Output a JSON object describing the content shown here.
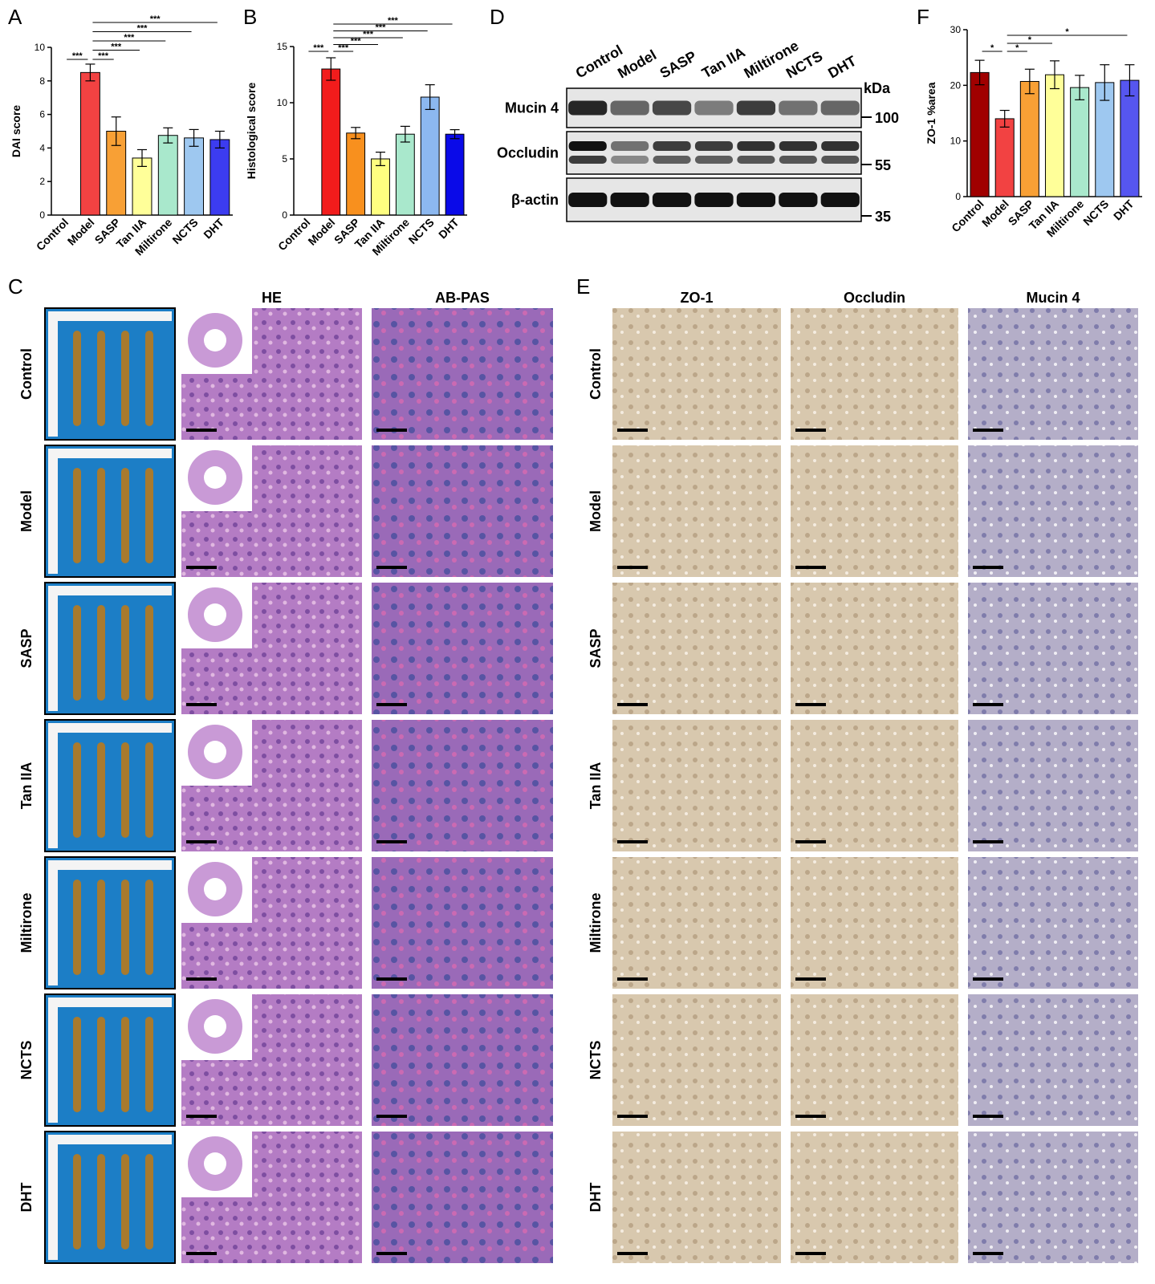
{
  "panel_labels": [
    "A",
    "B",
    "C",
    "D",
    "E",
    "F"
  ],
  "chart_data": [
    {
      "type": "bar",
      "y_label": "DAI score",
      "categories": [
        "Control",
        "Model",
        "SASP",
        "Tan IIA",
        "Miltirone",
        "NCTS",
        "DHT"
      ],
      "values": [
        0,
        8.5,
        5.0,
        3.4,
        4.75,
        4.6,
        4.5
      ],
      "errors": [
        null,
        0.5,
        0.85,
        0.5,
        0.45,
        0.5,
        0.5
      ],
      "colors": [
        "#a00000",
        "#f24242",
        "#f8a035",
        "#ffff99",
        "#a9e8cc",
        "#9ec8f0",
        "#3c3cf0"
      ],
      "ylim": [
        0,
        10
      ],
      "yticks": [
        0,
        2,
        4,
        6,
        8,
        10
      ],
      "comparisons": [
        {
          "groups": [
            "Control",
            "Model"
          ],
          "label": "***"
        },
        {
          "groups": [
            "Model",
            "SASP"
          ],
          "label": "***"
        },
        {
          "groups": [
            "Model",
            "Tan IIA"
          ],
          "label": "***"
        },
        {
          "groups": [
            "Model",
            "Miltirone"
          ],
          "label": "***"
        },
        {
          "groups": [
            "Model",
            "NCTS"
          ],
          "label": "***"
        },
        {
          "groups": [
            "Model",
            "DHT"
          ],
          "label": "***"
        }
      ]
    },
    {
      "type": "bar",
      "y_label": "Histological score",
      "categories": [
        "Control",
        "Model",
        "SASP",
        "Tan IIA",
        "Miltirone",
        "NCTS",
        "DHT"
      ],
      "values": [
        0,
        13.0,
        7.3,
        5.0,
        7.2,
        10.5,
        7.2
      ],
      "errors": [
        null,
        1.0,
        0.5,
        0.6,
        0.7,
        1.1,
        0.4
      ],
      "colors": [
        "#a00000",
        "#f21c1c",
        "#f8901e",
        "#ffff80",
        "#a9e8cc",
        "#8cb8f0",
        "#0a0ae8"
      ],
      "ylim": [
        0,
        15
      ],
      "yticks": [
        0,
        5,
        10,
        15
      ],
      "comparisons": [
        {
          "groups": [
            "Control",
            "Model"
          ],
          "label": "***"
        },
        {
          "groups": [
            "Model",
            "SASP"
          ],
          "label": "***"
        },
        {
          "groups": [
            "Model",
            "Tan IIA"
          ],
          "label": "***"
        },
        {
          "groups": [
            "Model",
            "Miltirone"
          ],
          "label": "***"
        },
        {
          "groups": [
            "Model",
            "NCTS"
          ],
          "label": "***"
        },
        {
          "groups": [
            "Model",
            "DHT"
          ],
          "label": "***"
        }
      ]
    },
    {
      "type": "bar",
      "y_label": "ZO-1 %area",
      "categories": [
        "Control",
        "Model",
        "SASP",
        "Tan IIA",
        "Miltirone",
        "NCTS",
        "DHT"
      ],
      "values": [
        22.3,
        14.0,
        20.7,
        21.9,
        19.6,
        20.5,
        20.9
      ],
      "errors": [
        2.2,
        1.5,
        2.2,
        2.5,
        2.2,
        3.2,
        2.8
      ],
      "colors": [
        "#a00000",
        "#f24242",
        "#f8a035",
        "#ffff99",
        "#a9e8cc",
        "#9ec8f0",
        "#5656f0"
      ],
      "ylim": [
        0,
        30
      ],
      "yticks": [
        0,
        10,
        20,
        30
      ],
      "comparisons": [
        {
          "groups": [
            "Control",
            "Model"
          ],
          "label": "*"
        },
        {
          "groups": [
            "Model",
            "SASP"
          ],
          "label": "*"
        },
        {
          "groups": [
            "Model",
            "Tan IIA"
          ],
          "label": "*"
        },
        {
          "groups": [
            "Model",
            "DHT"
          ],
          "label": "*"
        }
      ]
    }
  ],
  "blot": {
    "lanes": [
      "Control",
      "Model",
      "SASP",
      "Tan IIA",
      "Miltirone",
      "NCTS",
      "DHT"
    ],
    "proteins": [
      "Mucin 4",
      "Occludin",
      "β-actin"
    ],
    "unit": "kDa",
    "markers": [
      100,
      55,
      35
    ]
  },
  "panel_c": {
    "columns": [
      "HE",
      "AB-PAS"
    ],
    "rows": [
      "Control",
      "Model",
      "SASP",
      "Tan IIA",
      "Miltirone",
      "NCTS",
      "DHT"
    ]
  },
  "panel_e": {
    "columns": [
      "ZO-1",
      "Occludin",
      "Mucin 4"
    ],
    "rows": [
      "Control",
      "Model",
      "SASP",
      "Tan IIA",
      "Miltirone",
      "NCTS",
      "DHT"
    ]
  }
}
